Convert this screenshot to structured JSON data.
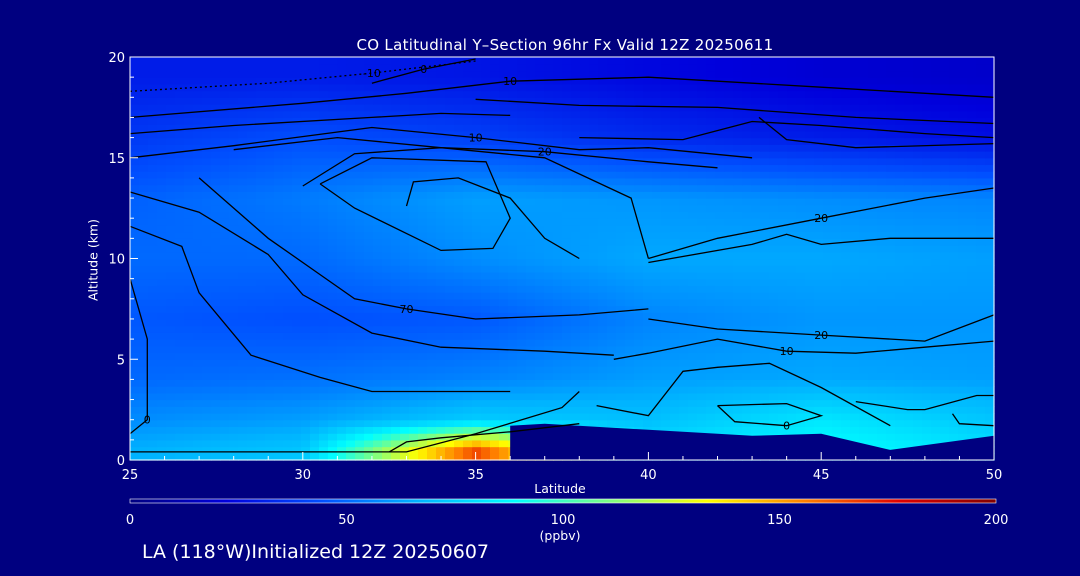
{
  "chart_data": {
    "type": "heatmap",
    "title": "CO Latitudinal Y–Section 96hr  Fx Valid 12Z 20250611",
    "xlabel": "Latitude",
    "ylabel": "Altitude (km)",
    "xlim": [
      25,
      50
    ],
    "ylim": [
      0,
      20
    ],
    "x_ticks": [
      "25",
      "30",
      "35",
      "40",
      "45",
      "50"
    ],
    "y_ticks": [
      "0",
      "5",
      "10",
      "15",
      "20"
    ],
    "colorbar": {
      "label": "(ppbv)",
      "range": [
        0,
        200
      ],
      "ticks": [
        "0",
        "50",
        "100",
        "150",
        "200"
      ],
      "colors": [
        "#000080",
        "#0000dc",
        "#0050ff",
        "#00b4ff",
        "#00ffff",
        "#80ff80",
        "#ffff00",
        "#ff8000",
        "#e00000",
        "#800000"
      ]
    },
    "field_levels_ppbv": [
      {
        "altitude_km": 19,
        "lat25": 30,
        "lat30": 30,
        "lat35": 28,
        "lat40": 24,
        "lat45": 20,
        "lat50": 18
      },
      {
        "altitude_km": 16,
        "lat25": 38,
        "lat30": 44,
        "lat35": 40,
        "lat40": 34,
        "lat45": 30,
        "lat50": 26
      },
      {
        "altitude_km": 13,
        "lat25": 48,
        "lat30": 54,
        "lat35": 62,
        "lat40": 60,
        "lat45": 58,
        "lat50": 56
      },
      {
        "altitude_km": 10,
        "lat25": 50,
        "lat30": 50,
        "lat35": 58,
        "lat40": 64,
        "lat45": 64,
        "lat50": 62
      },
      {
        "altitude_km": 7,
        "lat25": 46,
        "lat30": 44,
        "lat35": 46,
        "lat40": 56,
        "lat45": 60,
        "lat50": 60
      },
      {
        "altitude_km": 4,
        "lat25": 50,
        "lat30": 52,
        "lat35": 56,
        "lat40": 62,
        "lat45": 64,
        "lat50": 62
      },
      {
        "altitude_km": 2,
        "lat25": 58,
        "lat30": 62,
        "lat35": 74,
        "lat40": 70,
        "lat45": 82,
        "lat50": 72
      },
      {
        "altitude_km": 0.5,
        "lat25": 66,
        "lat30": 72,
        "lat35": 165,
        "lat40": 80,
        "lat45": 90,
        "lat50": 80
      }
    ],
    "terrain_km": [
      {
        "lat": 36,
        "height": 1.7
      },
      {
        "lat": 37,
        "height": 1.8
      },
      {
        "lat": 40,
        "height": 1.5
      },
      {
        "lat": 43,
        "height": 1.2
      },
      {
        "lat": 45,
        "height": 1.3
      },
      {
        "lat": 47,
        "height": 0.5
      },
      {
        "lat": 50,
        "height": 1.2
      }
    ],
    "contours": [
      {
        "label": "-10",
        "points": [
          [
            25,
            18.3
          ],
          [
            29,
            18.7
          ],
          [
            32,
            19.2
          ],
          [
            35,
            19.8
          ]
        ]
      },
      {
        "label": "0",
        "points": [
          [
            32,
            18.7
          ],
          [
            33.5,
            19.4
          ],
          [
            35,
            19.9
          ]
        ]
      },
      {
        "label": "10",
        "points": [
          [
            25,
            17.0
          ],
          [
            30,
            17.7
          ],
          [
            33,
            18.2
          ],
          [
            36,
            18.8
          ],
          [
            40,
            19.0
          ],
          [
            45,
            18.5
          ],
          [
            50,
            18.0
          ]
        ]
      },
      {
        "label": "",
        "points": [
          [
            35,
            17.9
          ],
          [
            38,
            17.6
          ],
          [
            42,
            17.5
          ],
          [
            46,
            17.0
          ],
          [
            50,
            16.7
          ]
        ]
      },
      {
        "label": "",
        "points": [
          [
            25,
            16.2
          ],
          [
            28,
            16.6
          ],
          [
            32,
            17.0
          ],
          [
            34,
            17.2
          ],
          [
            36,
            17.1
          ]
        ]
      },
      {
        "label": "",
        "points": [
          [
            38,
            16.0
          ],
          [
            41,
            15.9
          ],
          [
            43,
            16.8
          ],
          [
            45,
            16.6
          ],
          [
            48,
            16.2
          ],
          [
            50,
            16.0
          ]
        ]
      },
      {
        "label": "",
        "points": [
          [
            43.2,
            17.0
          ],
          [
            44,
            15.9
          ],
          [
            46,
            15.5
          ],
          [
            50,
            15.7
          ]
        ]
      },
      {
        "label": "10",
        "points": [
          [
            25,
            15.0
          ],
          [
            28,
            15.6
          ],
          [
            32,
            16.5
          ],
          [
            35,
            16.0
          ],
          [
            38,
            15.4
          ],
          [
            40,
            15.5
          ],
          [
            43,
            15.0
          ]
        ]
      },
      {
        "label": "20",
        "points": [
          [
            28,
            15.4
          ],
          [
            31,
            16.0
          ],
          [
            34,
            15.5
          ],
          [
            37,
            15.3
          ],
          [
            40,
            14.8
          ],
          [
            42,
            14.5
          ]
        ]
      },
      {
        "label": "",
        "points": [
          [
            30,
            13.6
          ],
          [
            31.5,
            15.2
          ],
          [
            34,
            15.5
          ],
          [
            37,
            15.0
          ],
          [
            39.5,
            13.0
          ],
          [
            40,
            10.0
          ]
        ]
      },
      {
        "label": "",
        "points": [
          [
            30.5,
            13.7
          ],
          [
            32,
            15.0
          ],
          [
            35.3,
            14.8
          ],
          [
            36,
            12.0
          ],
          [
            35.5,
            10.5
          ],
          [
            34,
            10.4
          ],
          [
            31.5,
            12.5
          ],
          [
            30.5,
            13.7
          ]
        ]
      },
      {
        "label": "",
        "points": [
          [
            33,
            12.6
          ],
          [
            33.2,
            13.8
          ],
          [
            34.5,
            14.0
          ],
          [
            36,
            13.0
          ],
          [
            37,
            11.0
          ],
          [
            38,
            10.0
          ]
        ]
      },
      {
        "label": "20",
        "points": [
          [
            40,
            10.0
          ],
          [
            42,
            11.0
          ],
          [
            45,
            12.0
          ],
          [
            48,
            13.0
          ],
          [
            50,
            13.5
          ]
        ]
      },
      {
        "label": "",
        "points": [
          [
            40,
            9.8
          ],
          [
            43,
            10.7
          ],
          [
            44,
            11.2
          ],
          [
            45,
            10.7
          ],
          [
            47,
            11.0
          ],
          [
            50,
            11.0
          ]
        ]
      },
      {
        "label": "70",
        "points": [
          [
            27,
            14.0
          ],
          [
            29,
            11.0
          ],
          [
            30.5,
            9.2
          ],
          [
            31.5,
            8.0
          ],
          [
            33,
            7.5
          ],
          [
            35,
            7.0
          ],
          [
            38,
            7.2
          ],
          [
            40,
            7.5
          ]
        ]
      },
      {
        "label": "",
        "points": [
          [
            25,
            13.3
          ],
          [
            27,
            12.3
          ],
          [
            29,
            10.2
          ],
          [
            30,
            8.2
          ],
          [
            32,
            6.3
          ],
          [
            34,
            5.6
          ],
          [
            37,
            5.4
          ],
          [
            39,
            5.2
          ]
        ]
      },
      {
        "label": "",
        "points": [
          [
            25,
            11.6
          ],
          [
            26.5,
            10.6
          ],
          [
            27,
            8.3
          ],
          [
            28.5,
            5.2
          ],
          [
            30.5,
            4.1
          ],
          [
            32,
            3.4
          ],
          [
            34,
            3.4
          ],
          [
            36,
            3.4
          ]
        ]
      },
      {
        "label": "20",
        "points": [
          [
            40,
            7.0
          ],
          [
            42,
            6.5
          ],
          [
            45,
            6.2
          ],
          [
            48,
            5.9
          ],
          [
            50,
            7.2
          ]
        ]
      },
      {
        "label": "10",
        "points": [
          [
            39,
            5.0
          ],
          [
            40,
            5.3
          ],
          [
            42,
            6.0
          ],
          [
            44,
            5.4
          ],
          [
            46,
            5.3
          ],
          [
            48,
            5.6
          ],
          [
            50,
            5.9
          ]
        ]
      },
      {
        "label": "0",
        "points": [
          [
            25,
            9.0
          ],
          [
            25.5,
            6.0
          ],
          [
            25.5,
            2.0
          ],
          [
            25,
            1.3
          ]
        ]
      },
      {
        "label": "",
        "points": [
          [
            38.5,
            2.7
          ],
          [
            40,
            2.2
          ],
          [
            41,
            4.4
          ],
          [
            42,
            4.6
          ],
          [
            43.5,
            4.8
          ],
          [
            44.5,
            4.0
          ],
          [
            45,
            3.6
          ],
          [
            47,
            1.7
          ]
        ]
      },
      {
        "label": "0",
        "points": [
          [
            42,
            2.7
          ],
          [
            44,
            2.8
          ],
          [
            45,
            2.2
          ],
          [
            44,
            1.7
          ],
          [
            42.5,
            1.9
          ],
          [
            42,
            2.7
          ]
        ]
      },
      {
        "label": "",
        "points": [
          [
            46,
            2.9
          ],
          [
            47.5,
            2.5
          ],
          [
            48,
            2.5
          ],
          [
            49.5,
            3.2
          ],
          [
            50,
            3.2
          ]
        ]
      },
      {
        "label": "",
        "points": [
          [
            48.8,
            2.3
          ],
          [
            49,
            1.8
          ],
          [
            50,
            1.7
          ]
        ]
      },
      {
        "label": "",
        "points": [
          [
            25,
            0.4
          ],
          [
            33,
            0.4
          ],
          [
            35,
            1.3
          ],
          [
            37.5,
            2.6
          ],
          [
            38,
            3.4
          ]
        ]
      },
      {
        "label": "",
        "points": [
          [
            32.5,
            0.4
          ],
          [
            33,
            0.9
          ],
          [
            34,
            1.1
          ],
          [
            36,
            1.4
          ],
          [
            38,
            1.8
          ]
        ]
      }
    ]
  },
  "footer": "LA (118°W)Initialized 12Z 20250607"
}
